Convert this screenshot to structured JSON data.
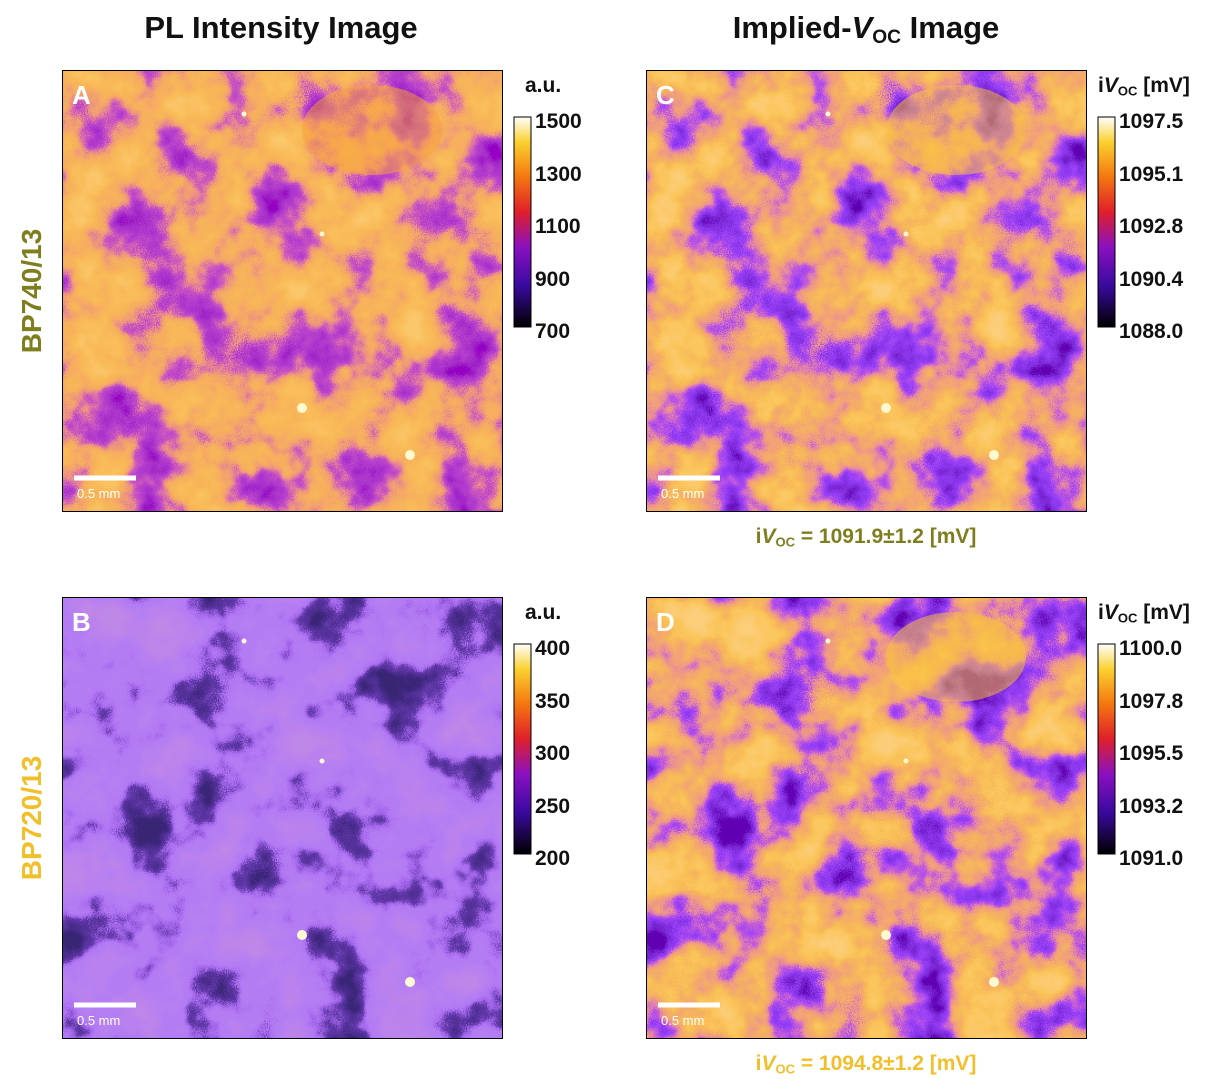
{
  "headers": [
    {
      "parts": [
        "PL Intensity Image"
      ]
    },
    {
      "parts": [
        "Implied-",
        "V",
        "OC",
        " Image"
      ]
    }
  ],
  "rows": [
    {
      "label": "BP740/13",
      "panels": [
        {
          "letter": "A",
          "unit": [
            "a.u."
          ],
          "ticks": [
            "1500",
            "1300",
            "1100",
            "900",
            "700"
          ],
          "scale_bar": "0.5 mm"
        },
        {
          "letter": "C",
          "unit": [
            "i",
            "V",
            "OC",
            " [mV]"
          ],
          "ticks": [
            "1097.5",
            "1095.1",
            "1092.8",
            "1090.4",
            "1088.0"
          ],
          "scale_bar": "0.5 mm"
        }
      ],
      "result": [
        "i",
        "V",
        "OC",
        " = 1091.9±1.2 [mV]"
      ]
    },
    {
      "label": "BP720/13",
      "panels": [
        {
          "letter": "B",
          "unit": [
            "a.u."
          ],
          "ticks": [
            "400",
            "350",
            "300",
            "250",
            "200"
          ],
          "scale_bar": "0.5 mm"
        },
        {
          "letter": "D",
          "unit": [
            "i",
            "V",
            "OC",
            " [mV]"
          ],
          "ticks": [
            "1100.0",
            "1097.8",
            "1095.5",
            "1093.2",
            "1091.0"
          ],
          "scale_bar": "0.5 mm"
        }
      ],
      "result": [
        "i",
        "V",
        "OC",
        " = 1094.8±1.2 [mV]"
      ]
    }
  ]
}
